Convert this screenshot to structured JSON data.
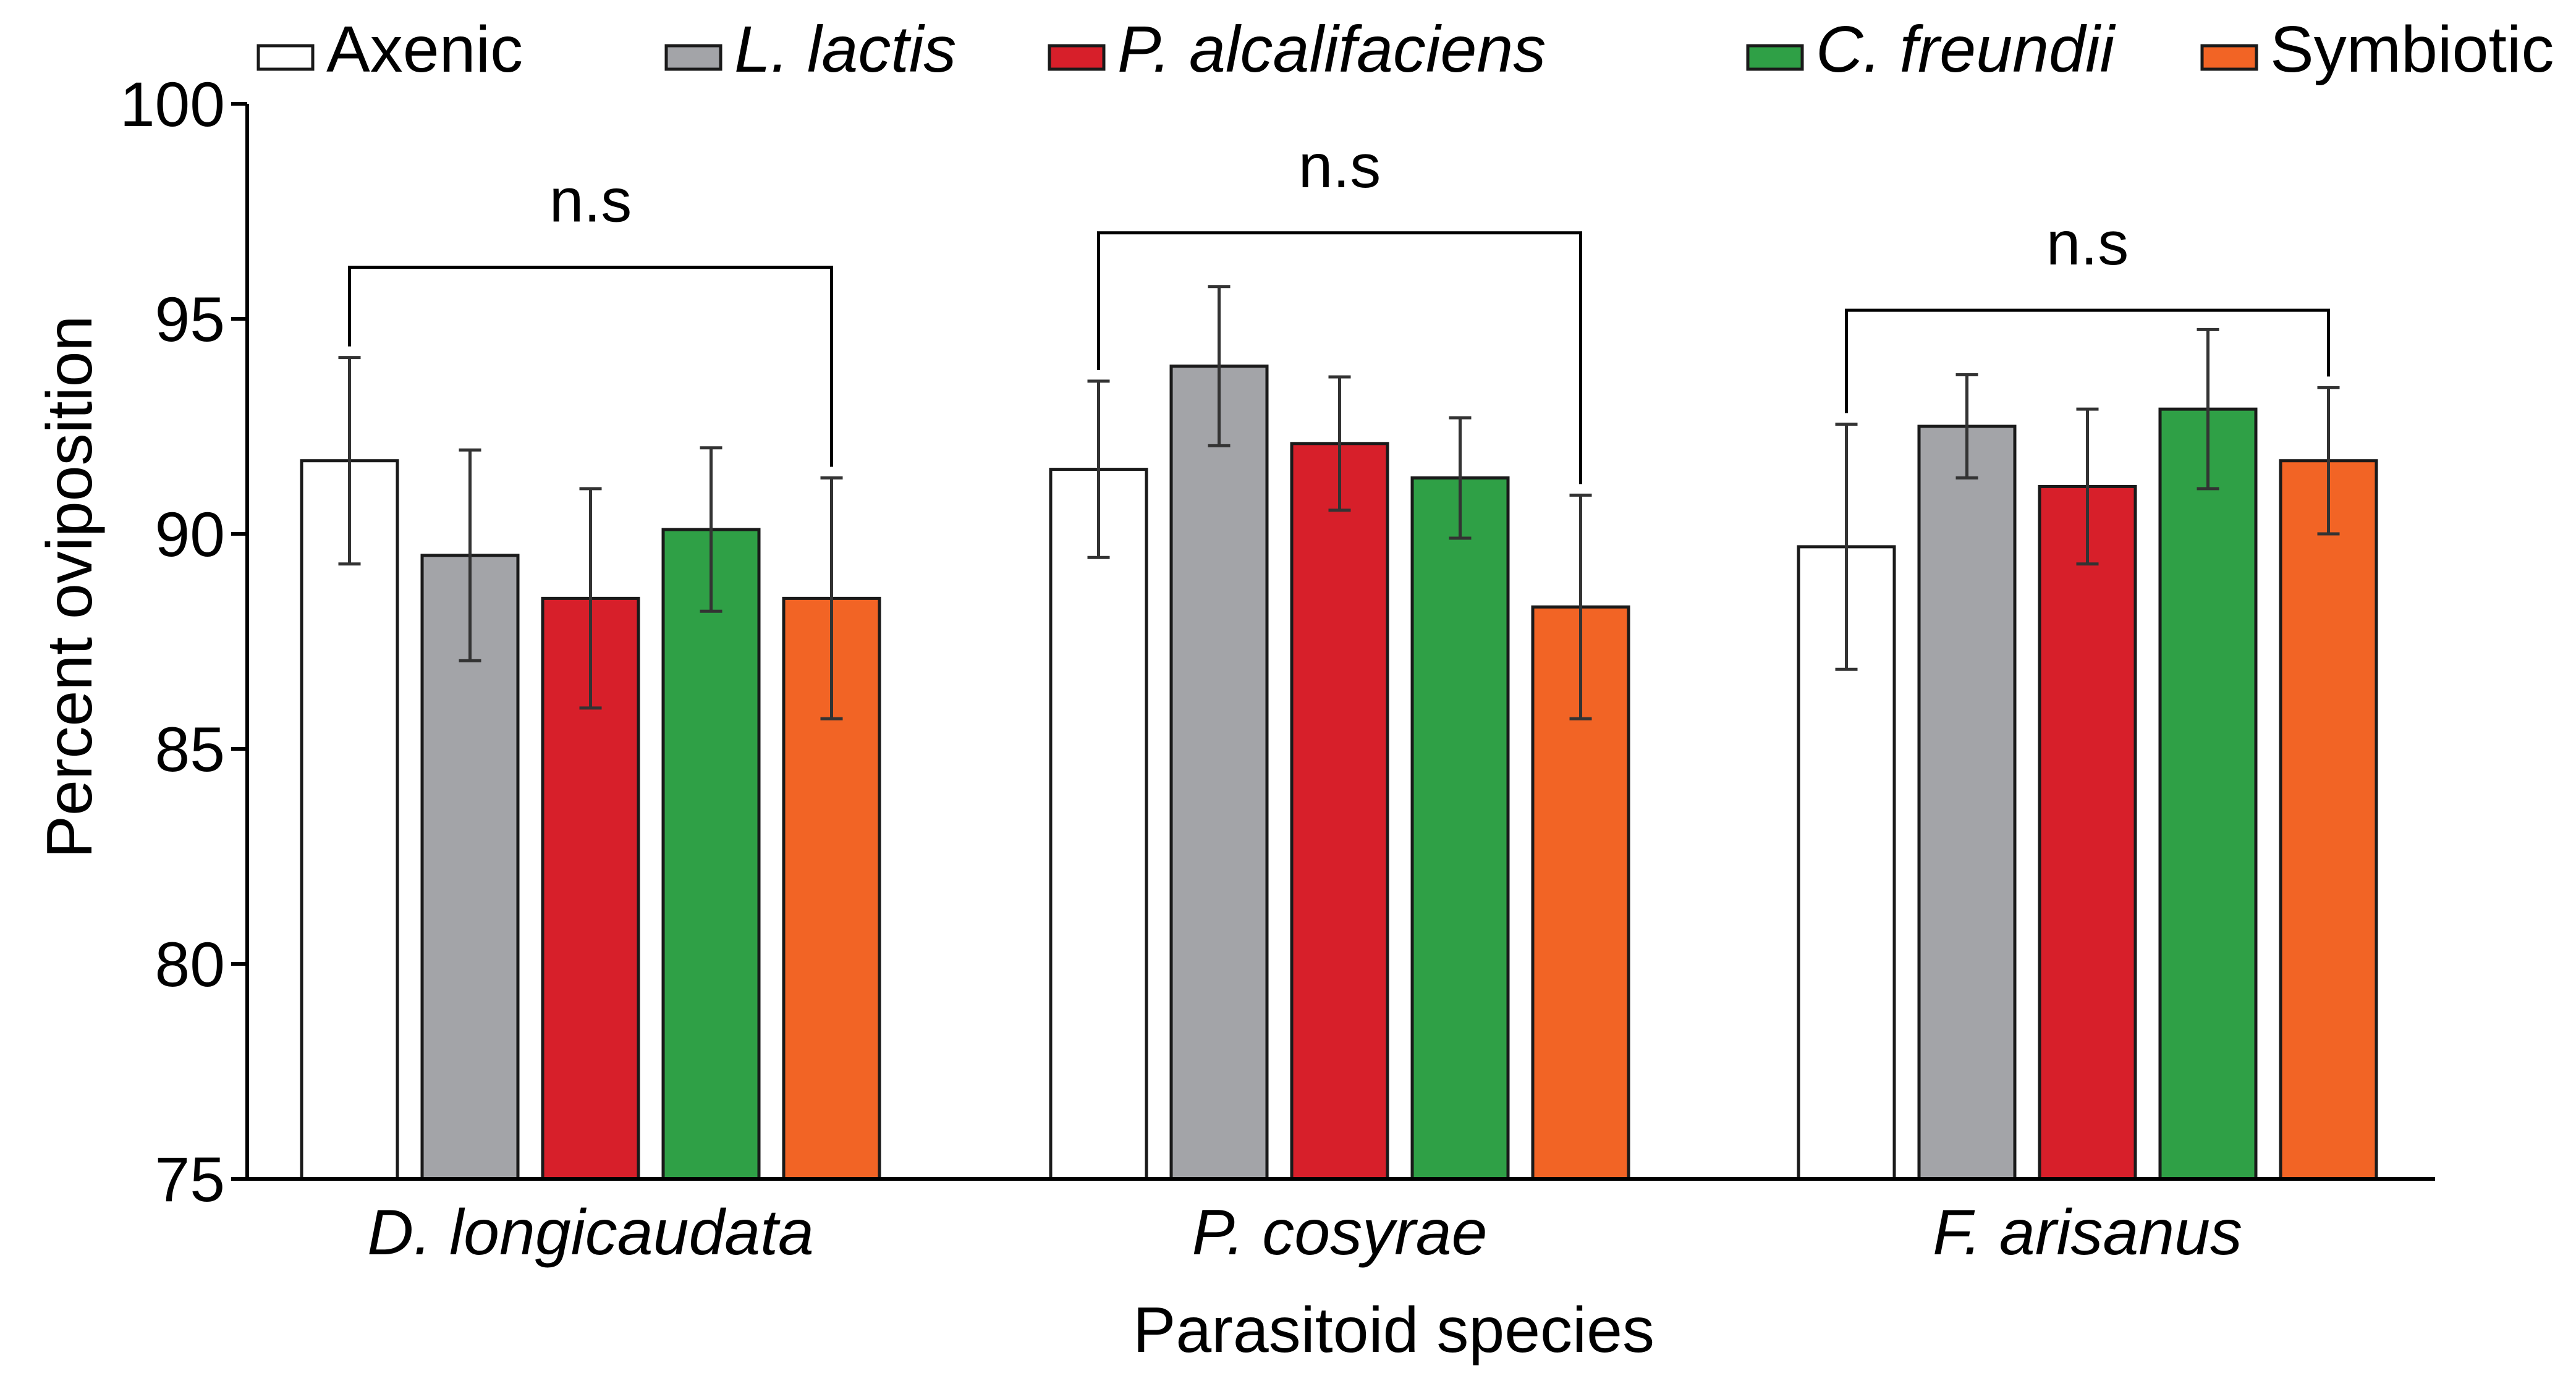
{
  "chart_data": {
    "type": "bar",
    "title": "",
    "xlabel": "Parasitoid species",
    "ylabel": "Percent oviposition",
    "ylim": [
      75,
      100
    ],
    "yticks": [
      "75",
      "80",
      "85",
      "90",
      "95",
      "100"
    ],
    "ytick_values": [
      75,
      80,
      85,
      90,
      95,
      100
    ],
    "grid": false,
    "legend_position": "top",
    "categories": [
      "D. longicaudata",
      "P. cosyrae",
      "F. arisanus"
    ],
    "series": [
      {
        "name": "Axenic",
        "italic": false,
        "color": "#ffffff",
        "values": [
          91.7,
          91.5,
          89.7
        ],
        "errors": [
          2.4,
          2.05,
          2.85
        ]
      },
      {
        "name": "L. lactis",
        "italic": true,
        "color": "#a3a4a8",
        "values": [
          89.5,
          93.9,
          92.5
        ],
        "errors": [
          2.45,
          1.85,
          1.2
        ]
      },
      {
        "name": "P. alcalifaciens",
        "italic": true,
        "color": "#d71f2a",
        "values": [
          88.5,
          92.1,
          91.1
        ],
        "errors": [
          2.55,
          1.55,
          1.8
        ]
      },
      {
        "name": "C. freundii",
        "italic": true,
        "color": "#2fa046",
        "values": [
          90.1,
          91.3,
          92.9
        ],
        "errors": [
          1.9,
          1.4,
          1.85
        ]
      },
      {
        "name": "Symbiotic",
        "italic": false,
        "color": "#f26425",
        "values": [
          88.5,
          88.3,
          91.7
        ],
        "errors": [
          2.8,
          2.6,
          1.7
        ]
      }
    ],
    "annotations": [
      {
        "group": 0,
        "text": "n.s",
        "from_series": 0,
        "to_series": 4,
        "level": 96.2
      },
      {
        "group": 1,
        "text": "n.s",
        "from_series": 0,
        "to_series": 4,
        "level": 97.0
      },
      {
        "group": 2,
        "text": "n.s",
        "from_series": 0,
        "to_series": 4,
        "level": 95.2
      }
    ]
  },
  "colors": {
    "axis": "#000000",
    "bar_outline": "#1a1a1a",
    "error_bar": "#333333"
  }
}
